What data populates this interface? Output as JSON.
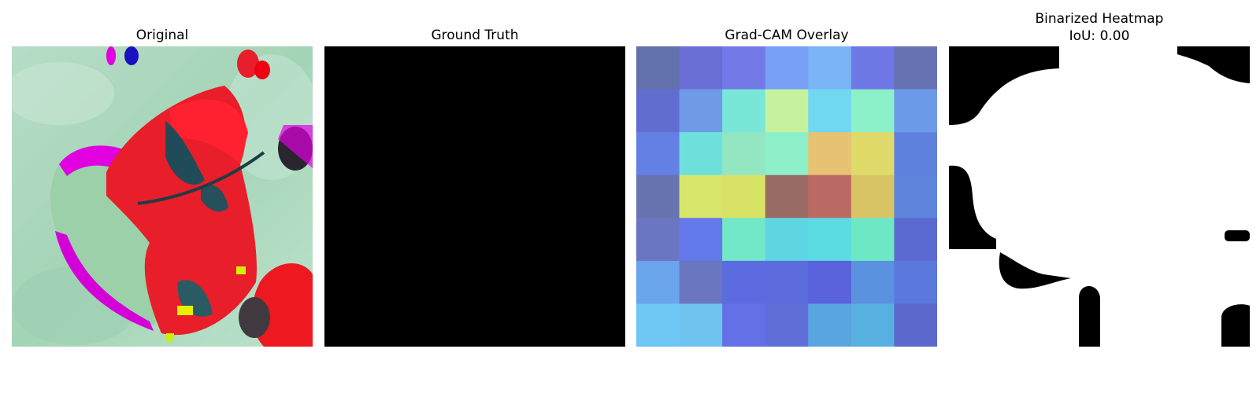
{
  "panels": [
    {
      "title": "Original",
      "image": "leaf-photo-false-color"
    },
    {
      "title": "Ground Truth",
      "image": "empty-mask"
    },
    {
      "title": "Grad-CAM Overlay",
      "image": "heatmap-overlay-7x7"
    },
    {
      "title_line1": "Binarized Heatmap",
      "title_line2": "IoU: 0.00",
      "image": "binary-mask"
    }
  ],
  "gradcam": {
    "grid_size": 7,
    "cells": [
      [
        "#6270ac",
        "#6a6fd6",
        "#7479e8",
        "#77a0f6",
        "#78b4f6",
        "#6e79e6",
        "#6773b2"
      ],
      [
        "#626ecf",
        "#6e9ae8",
        "#79e6d8",
        "#c6f2a0",
        "#70d8f0",
        "#8cf0c8",
        "#6b9ae8"
      ],
      [
        "#6480e4",
        "#6ee0dc",
        "#92e6c2",
        "#8ef0c8",
        "#e6c272",
        "#e0da6a",
        "#5f82de"
      ],
      [
        "#6874b0",
        "#d8e66c",
        "#d8e264",
        "#9a6a64",
        "#bc6a64",
        "#d8c464",
        "#5f84dc"
      ],
      [
        "#6a76c2",
        "#6479ea",
        "#72e8c8",
        "#5ed6e2",
        "#5adce2",
        "#6ee8c4",
        "#5a6ad0"
      ],
      [
        "#6aa4ec",
        "#6a76c0",
        "#5c6ce0",
        "#5c6cdc",
        "#5a62dc",
        "#5a92e0",
        "#5a78de"
      ],
      [
        "#6ec6f2",
        "#6ec4ee",
        "#6470e6",
        "#5e70d8",
        "#5aa4e0",
        "#58b0e0",
        "#5c68cc"
      ]
    ]
  }
}
